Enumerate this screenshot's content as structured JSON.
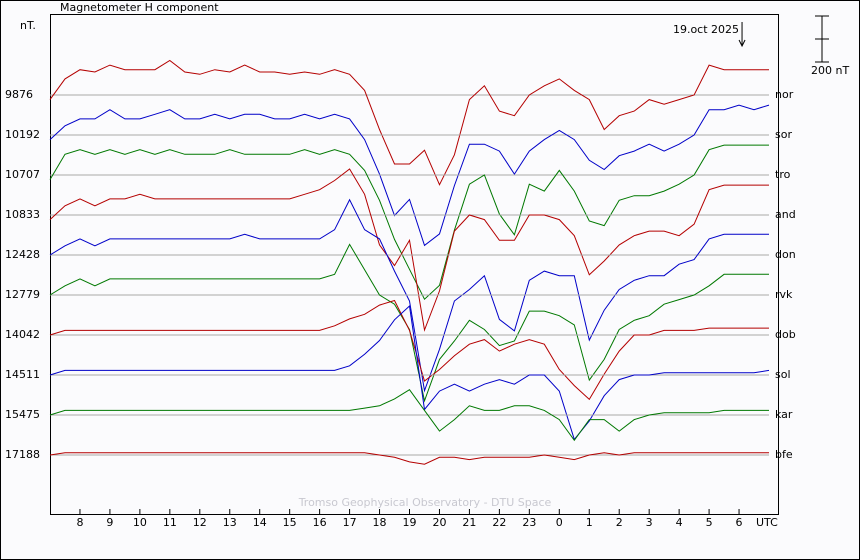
{
  "chart_data": {
    "type": "stackplot",
    "title": "Magnetometer H component",
    "unit_label": "nT.",
    "x_label": "UTC",
    "footer": "Tromso Geophysical Observatory - DTU Space",
    "date_marker": {
      "label": "19.oct 2025",
      "x": 30.1
    },
    "scale_bar": {
      "value": 200,
      "label": "200 nT"
    },
    "grid": true,
    "xlim": [
      7,
      31
    ],
    "xticks": [
      8,
      9,
      10,
      11,
      12,
      13,
      14,
      15,
      16,
      17,
      18,
      19,
      20,
      21,
      22,
      23,
      {
        "value": 24,
        "label": "0"
      },
      {
        "value": 25,
        "label": "1"
      },
      {
        "value": 26,
        "label": "2"
      },
      {
        "value": 27,
        "label": "3"
      },
      {
        "value": 28,
        "label": "4"
      },
      {
        "value": 29,
        "label": "5"
      },
      {
        "value": 30,
        "label": "6"
      }
    ],
    "x": [
      7,
      7.5,
      8,
      8.5,
      9,
      9.5,
      10,
      10.5,
      11,
      11.5,
      12,
      12.5,
      13,
      13.5,
      14,
      14.5,
      15,
      15.5,
      16,
      16.5,
      17,
      17.5,
      18,
      18.5,
      19,
      19.5,
      20,
      20.5,
      21,
      21.5,
      22,
      22.5,
      23,
      23.5,
      24,
      24.5,
      25,
      25.5,
      26,
      26.5,
      27,
      27.5,
      28,
      28.5,
      29,
      29.5,
      30,
      30.5,
      31
    ],
    "series": [
      {
        "name": "nor",
        "baseline": 9876,
        "color": "#b40000",
        "values": [
          -20,
          70,
          110,
          100,
          130,
          110,
          110,
          110,
          150,
          100,
          90,
          110,
          100,
          130,
          100,
          100,
          90,
          100,
          90,
          110,
          90,
          20,
          -150,
          -300,
          -300,
          -240,
          -390,
          -260,
          -20,
          40,
          -70,
          -90,
          0,
          40,
          70,
          20,
          -20,
          -150,
          -90,
          -70,
          -20,
          -40,
          -20,
          0,
          130,
          110,
          110,
          110,
          110
        ]
      },
      {
        "name": "sor",
        "baseline": 10192,
        "color": "#0000c8",
        "values": [
          -20,
          40,
          70,
          70,
          110,
          70,
          70,
          90,
          110,
          70,
          70,
          90,
          70,
          90,
          90,
          70,
          70,
          90,
          70,
          90,
          70,
          -20,
          -170,
          -350,
          -280,
          -480,
          -430,
          -220,
          -40,
          -40,
          -70,
          -170,
          -70,
          -20,
          20,
          -20,
          -110,
          -150,
          -90,
          -70,
          -40,
          -70,
          -40,
          0,
          110,
          110,
          130,
          110,
          130
        ]
      },
      {
        "name": "tro",
        "baseline": 10707,
        "color": "#007800",
        "values": [
          -20,
          90,
          110,
          90,
          110,
          90,
          110,
          90,
          110,
          90,
          90,
          90,
          110,
          90,
          90,
          90,
          90,
          110,
          90,
          110,
          90,
          20,
          -110,
          -280,
          -410,
          -540,
          -480,
          -240,
          -40,
          0,
          -170,
          -260,
          -40,
          -70,
          20,
          -70,
          -200,
          -220,
          -110,
          -90,
          -90,
          -70,
          -40,
          0,
          110,
          130,
          130,
          130,
          130
        ]
      },
      {
        "name": "and",
        "baseline": 10833,
        "color": "#b40000",
        "values": [
          -20,
          40,
          70,
          40,
          70,
          70,
          90,
          70,
          70,
          70,
          70,
          70,
          70,
          70,
          70,
          70,
          70,
          90,
          110,
          150,
          200,
          90,
          -130,
          -220,
          -110,
          -500,
          -330,
          -70,
          0,
          -20,
          -110,
          -110,
          0,
          0,
          -20,
          -90,
          -260,
          -200,
          -130,
          -90,
          -70,
          -70,
          -90,
          -40,
          110,
          130,
          130,
          130,
          130
        ]
      },
      {
        "name": "don",
        "baseline": 12428,
        "color": "#0000c8",
        "values": [
          0,
          40,
          70,
          40,
          70,
          70,
          70,
          70,
          70,
          70,
          70,
          70,
          70,
          90,
          70,
          70,
          70,
          70,
          70,
          110,
          240,
          110,
          70,
          -70,
          -200,
          -590,
          -410,
          -200,
          -150,
          -90,
          -280,
          -330,
          -110,
          -70,
          -90,
          -90,
          -370,
          -240,
          -150,
          -110,
          -90,
          -90,
          -40,
          -20,
          70,
          90,
          90,
          90,
          90
        ]
      },
      {
        "name": "rvk",
        "baseline": 12779,
        "color": "#007800",
        "values": [
          0,
          40,
          70,
          40,
          70,
          70,
          70,
          70,
          70,
          70,
          70,
          70,
          70,
          70,
          70,
          70,
          70,
          70,
          70,
          90,
          220,
          110,
          0,
          -40,
          -150,
          -460,
          -280,
          -200,
          -110,
          -150,
          -220,
          -200,
          -70,
          -70,
          -90,
          -130,
          -370,
          -280,
          -150,
          -110,
          -90,
          -40,
          -20,
          0,
          40,
          90,
          90,
          90,
          90
        ]
      },
      {
        "name": "dob",
        "baseline": 14042,
        "color": "#b40000",
        "values": [
          0,
          20,
          20,
          20,
          20,
          20,
          20,
          20,
          20,
          20,
          20,
          20,
          20,
          20,
          20,
          20,
          20,
          20,
          20,
          40,
          70,
          90,
          130,
          150,
          20,
          -200,
          -150,
          -90,
          -40,
          -20,
          -70,
          -40,
          -20,
          -40,
          -150,
          -220,
          -280,
          -170,
          -70,
          0,
          0,
          20,
          20,
          20,
          30,
          30,
          30,
          30,
          30
        ]
      },
      {
        "name": "sol",
        "baseline": 14511,
        "color": "#0000c8",
        "values": [
          0,
          20,
          20,
          20,
          20,
          20,
          20,
          20,
          20,
          20,
          20,
          20,
          20,
          20,
          20,
          20,
          20,
          20,
          20,
          20,
          40,
          90,
          150,
          240,
          300,
          -150,
          -70,
          -40,
          -70,
          -40,
          -20,
          -40,
          0,
          0,
          -70,
          -280,
          -200,
          -90,
          -20,
          0,
          0,
          10,
          10,
          10,
          10,
          10,
          10,
          10,
          20
        ]
      },
      {
        "name": "kar",
        "baseline": 15475,
        "color": "#007800",
        "values": [
          0,
          20,
          20,
          20,
          20,
          20,
          20,
          20,
          20,
          20,
          20,
          20,
          20,
          20,
          20,
          20,
          20,
          20,
          20,
          20,
          20,
          30,
          40,
          70,
          110,
          20,
          -70,
          -20,
          40,
          20,
          20,
          40,
          40,
          20,
          -20,
          -110,
          -20,
          -20,
          -70,
          -20,
          0,
          10,
          10,
          10,
          10,
          20,
          20,
          20,
          20
        ]
      },
      {
        "name": "bfe",
        "baseline": 17188,
        "color": "#b40000",
        "values": [
          0,
          10,
          10,
          10,
          10,
          10,
          10,
          10,
          10,
          10,
          10,
          10,
          10,
          10,
          10,
          10,
          10,
          10,
          10,
          10,
          10,
          10,
          0,
          -10,
          -30,
          -40,
          -10,
          -10,
          -20,
          -10,
          -10,
          -10,
          -10,
          0,
          -10,
          -20,
          0,
          10,
          0,
          10,
          10,
          10,
          10,
          10,
          10,
          10,
          10,
          10,
          10
        ]
      }
    ]
  }
}
